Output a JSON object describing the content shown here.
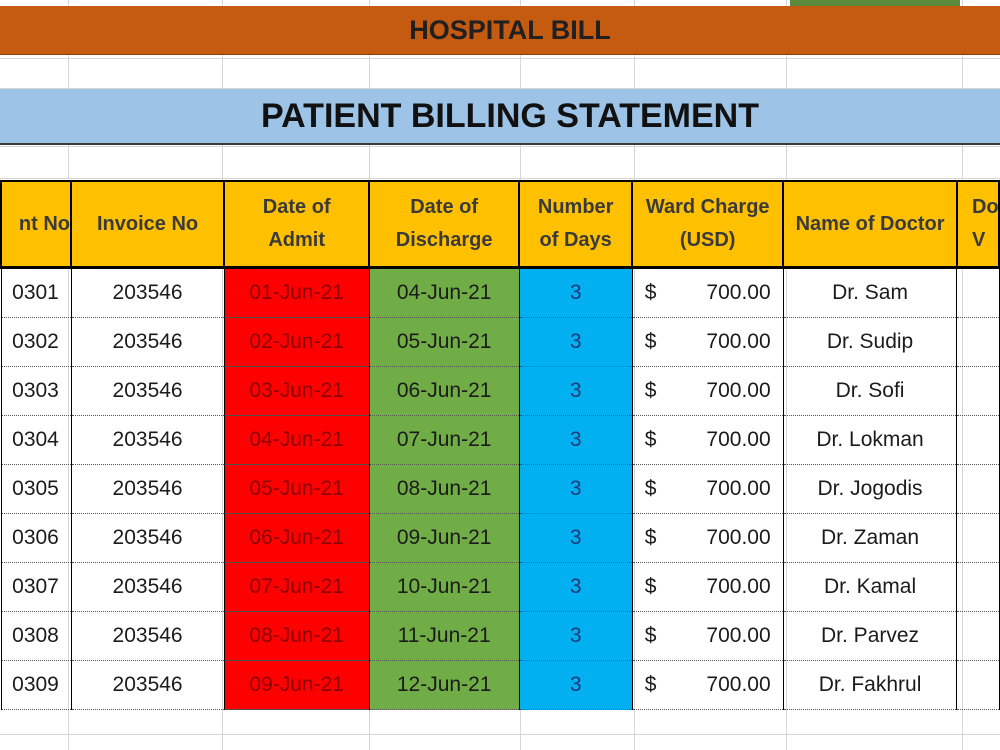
{
  "banner": {
    "title": "HOSPITAL BILL"
  },
  "statement": {
    "title": "PATIENT BILLING STATEMENT"
  },
  "table": {
    "headers": {
      "patient_no": "nt No",
      "invoice_no": "Invoice No",
      "date_admit_1": "Date of",
      "date_admit_2": "Admit",
      "date_discharge_1": "Date of",
      "date_discharge_2": "Discharge",
      "days_1": "Number",
      "days_2": "of Days",
      "ward_1": "Ward Charge",
      "ward_2": "(USD)",
      "doctor": "Name of Doctor",
      "last_1": "Do",
      "last_2": "V"
    },
    "currency_symbol": "$",
    "rows": [
      {
        "patient": "0301",
        "invoice": "203546",
        "admit": "01-Jun-21",
        "discharge": "04-Jun-21",
        "days": "3",
        "ward": "700.00",
        "doctor": "Dr. Sam"
      },
      {
        "patient": "0302",
        "invoice": "203546",
        "admit": "02-Jun-21",
        "discharge": "05-Jun-21",
        "days": "3",
        "ward": "700.00",
        "doctor": "Dr. Sudip"
      },
      {
        "patient": "0303",
        "invoice": "203546",
        "admit": "03-Jun-21",
        "discharge": "06-Jun-21",
        "days": "3",
        "ward": "700.00",
        "doctor": "Dr. Sofi"
      },
      {
        "patient": "0304",
        "invoice": "203546",
        "admit": "04-Jun-21",
        "discharge": "07-Jun-21",
        "days": "3",
        "ward": "700.00",
        "doctor": "Dr. Lokman"
      },
      {
        "patient": "0305",
        "invoice": "203546",
        "admit": "05-Jun-21",
        "discharge": "08-Jun-21",
        "days": "3",
        "ward": "700.00",
        "doctor": "Dr. Jogodis"
      },
      {
        "patient": "0306",
        "invoice": "203546",
        "admit": "06-Jun-21",
        "discharge": "09-Jun-21",
        "days": "3",
        "ward": "700.00",
        "doctor": "Dr. Zaman"
      },
      {
        "patient": "0307",
        "invoice": "203546",
        "admit": "07-Jun-21",
        "discharge": "10-Jun-21",
        "days": "3",
        "ward": "700.00",
        "doctor": "Dr. Kamal"
      },
      {
        "patient": "0308",
        "invoice": "203546",
        "admit": "08-Jun-21",
        "discharge": "11-Jun-21",
        "days": "3",
        "ward": "700.00",
        "doctor": "Dr. Parvez"
      },
      {
        "patient": "0309",
        "invoice": "203546",
        "admit": "09-Jun-21",
        "discharge": "12-Jun-21",
        "days": "3",
        "ward": "700.00",
        "doctor": "Dr. Fakhrul"
      }
    ]
  },
  "colors": {
    "banner": "#c55a11",
    "title_bar": "#9dc3e6",
    "header": "#ffc000",
    "admit": "#ff0000",
    "discharge": "#70ad47",
    "days": "#00b0f0"
  }
}
